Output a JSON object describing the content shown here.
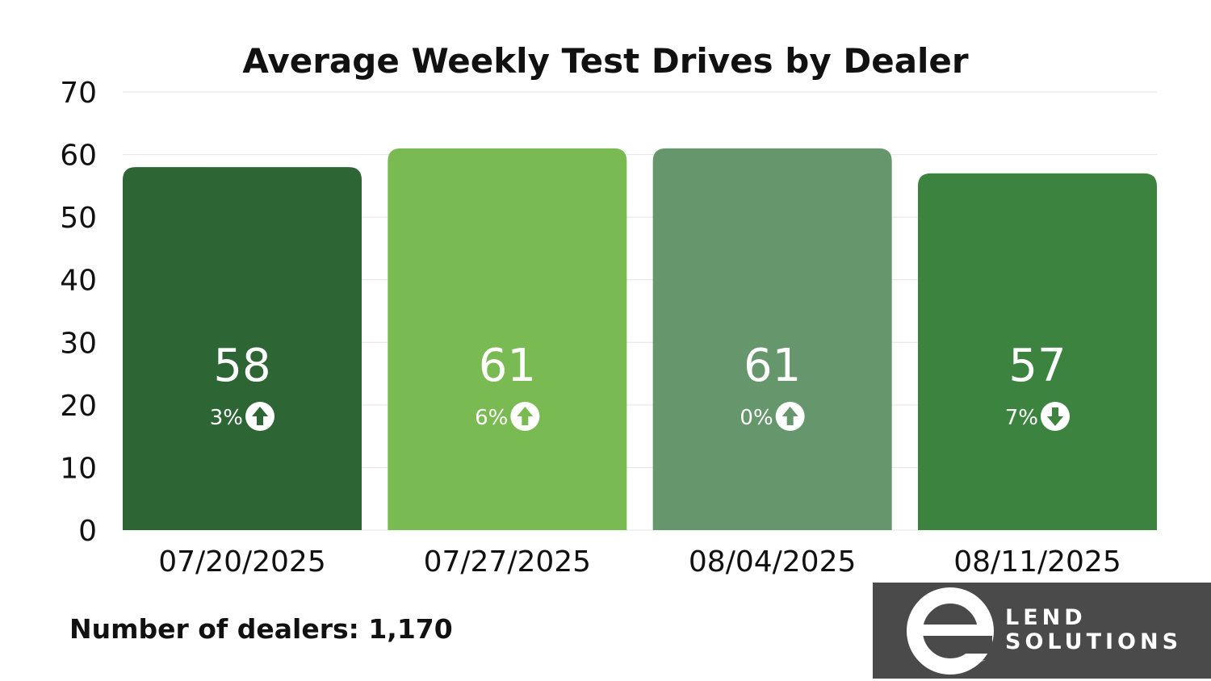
{
  "chart_data": {
    "type": "bar",
    "title": "Average Weekly Test Drives by Dealer",
    "categories": [
      "07/20/2025",
      "07/27/2025",
      "08/04/2025",
      "08/11/2025"
    ],
    "values": [
      58,
      61,
      61,
      57
    ],
    "value_labels": [
      "58",
      "61",
      "61",
      "57"
    ],
    "changes": [
      {
        "label": "3%",
        "direction": "up"
      },
      {
        "label": "6%",
        "direction": "up"
      },
      {
        "label": "0%",
        "direction": "up"
      },
      {
        "label": "7%",
        "direction": "down"
      }
    ],
    "bar_colors": [
      "#2d6534",
      "#7aba52",
      "#66966b",
      "#3b833f"
    ],
    "ylim": [
      0,
      70
    ],
    "yticks": [
      0,
      10,
      20,
      30,
      40,
      50,
      60,
      70
    ],
    "grid": true,
    "xlabel": "",
    "ylabel": ""
  },
  "footnote": "Number of dealers: 1,170",
  "logo": {
    "line1": "LEND",
    "line2": "SOLUTIONS",
    "letter_icon": "e-swoosh-logo-icon",
    "background": "#4a4a4a"
  }
}
